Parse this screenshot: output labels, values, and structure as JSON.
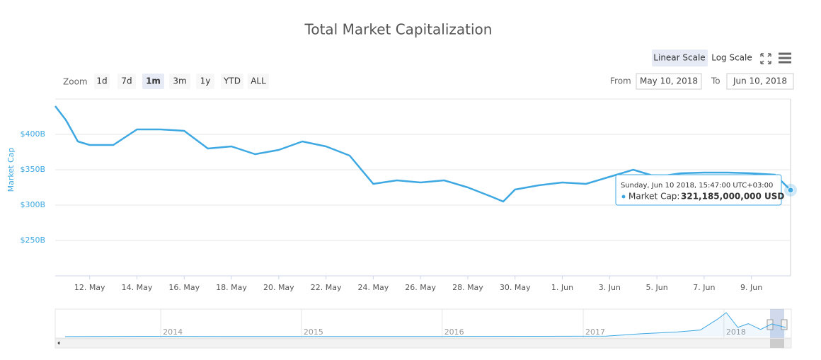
{
  "title": "Total Market Capitalization",
  "controls": {
    "linear": "Linear Scale",
    "log": "Log Scale",
    "zoom": "Zoom",
    "ranges": [
      "1d",
      "7d",
      "1m",
      "3m",
      "1y",
      "YTD",
      "ALL"
    ],
    "from_label": "From",
    "from": "May 10, 2018",
    "to_label": "To",
    "to": "Jun 10, 2018"
  },
  "chart_data": [
    {
      "type": "line",
      "y_label": "Market Cap",
      "color": "#3ea8e2",
      "x": [
        "2018-05-10T13:00",
        "2018-05-11T00:00",
        "2018-05-11T12:00",
        "2018-05-12T00:00",
        "2018-05-13T00:00",
        "2018-05-14T00:00",
        "2018-05-15T00:00",
        "2018-05-16T00:00",
        "2018-05-17T00:00",
        "2018-05-18T00:00",
        "2018-05-19T00:00",
        "2018-05-20T00:00",
        "2018-05-21T00:00",
        "2018-05-22T00:00",
        "2018-05-23T00:00",
        "2018-05-24T00:00",
        "2018-05-25T00:00",
        "2018-05-26T00:00",
        "2018-05-27T00:00",
        "2018-05-28T00:00",
        "2018-05-29T00:00",
        "2018-05-29T12:00",
        "2018-05-30T00:00",
        "2018-05-31T00:00",
        "2018-06-01T00:00",
        "2018-06-02T00:00",
        "2018-06-03T00:00",
        "2018-06-04T00:00",
        "2018-06-05T00:00",
        "2018-06-06T00:00",
        "2018-06-07T00:00",
        "2018-06-08T00:00",
        "2018-06-09T00:00",
        "2018-06-10T00:00",
        "2018-06-10T15:47"
      ],
      "values": [
        440000000000,
        420000000000,
        390000000000,
        385000000000,
        385000000000,
        407000000000,
        407000000000,
        405000000000,
        380000000000,
        383000000000,
        372000000000,
        378000000000,
        390000000000,
        383000000000,
        370000000000,
        330000000000,
        335000000000,
        332000000000,
        335000000000,
        325000000000,
        312000000000,
        305000000000,
        322000000000,
        328000000000,
        332000000000,
        330000000000,
        340000000000,
        350000000000,
        340000000000,
        345000000000,
        346000000000,
        346000000000,
        345000000000,
        343000000000,
        321185000000
      ],
      "xlim": [
        "2018-05-10T13:00",
        "2018-06-10T15:47"
      ],
      "ylim": [
        200000000000,
        450000000000
      ],
      "yticks": [
        {
          "value": 250000000000,
          "label": "$250B"
        },
        {
          "value": 300000000000,
          "label": "$300B"
        },
        {
          "value": 350000000000,
          "label": "$350B"
        },
        {
          "value": 400000000000,
          "label": "$400B"
        }
      ],
      "xticks": [
        {
          "value": "2018-05-12T00:00",
          "label": "12. May"
        },
        {
          "value": "2018-05-14T00:00",
          "label": "14. May"
        },
        {
          "value": "2018-05-16T00:00",
          "label": "16. May"
        },
        {
          "value": "2018-05-18T00:00",
          "label": "18. May"
        },
        {
          "value": "2018-05-20T00:00",
          "label": "20. May"
        },
        {
          "value": "2018-05-22T00:00",
          "label": "22. May"
        },
        {
          "value": "2018-05-24T00:00",
          "label": "24. May"
        },
        {
          "value": "2018-05-26T00:00",
          "label": "26. May"
        },
        {
          "value": "2018-05-28T00:00",
          "label": "28. May"
        },
        {
          "value": "2018-05-30T00:00",
          "label": "30. May"
        },
        {
          "value": "2018-06-01T00:00",
          "label": "1. Jun"
        },
        {
          "value": "2018-06-03T00:00",
          "label": "3. Jun"
        },
        {
          "value": "2018-06-05T00:00",
          "label": "5. Jun"
        },
        {
          "value": "2018-06-07T00:00",
          "label": "7. Jun"
        },
        {
          "value": "2018-06-09T00:00",
          "label": "9. Jun"
        }
      ],
      "grid": true,
      "tooltip": {
        "date": "Sunday, Jun 10 2018, 15:47:00 UTC+03:00",
        "label": "Market Cap:",
        "value": 321185000000,
        "value_label": "321,185,000,000 USD"
      }
    },
    {
      "type": "area",
      "color": "#3ea8e2",
      "x": [
        "2013-04-28",
        "2013-12-01",
        "2014-06-01",
        "2015-01-01",
        "2016-01-01",
        "2016-12-01",
        "2017-03-01",
        "2017-06-01",
        "2017-09-01",
        "2017-11-01",
        "2017-12-15",
        "2018-01-07",
        "2018-02-06",
        "2018-03-05",
        "2018-04-06",
        "2018-05-05",
        "2018-06-10"
      ],
      "values": [
        1500000000,
        13000000000,
        8000000000,
        5000000000,
        7000000000,
        14000000000,
        20000000000,
        100000000000,
        160000000000,
        230000000000,
        600000000000,
        830000000000,
        320000000000,
        450000000000,
        250000000000,
        440000000000,
        321000000000
      ],
      "xlim": [
        "2013-04-28",
        "2018-06-10"
      ],
      "ylim": [
        0,
        830000000000
      ],
      "xticks": [
        {
          "value": "2014-01-01",
          "label": "2014"
        },
        {
          "value": "2015-01-01",
          "label": "2015"
        },
        {
          "value": "2016-01-01",
          "label": "2016"
        },
        {
          "value": "2017-01-01",
          "label": "2017"
        },
        {
          "value": "2018-01-01",
          "label": "2018"
        }
      ]
    }
  ]
}
